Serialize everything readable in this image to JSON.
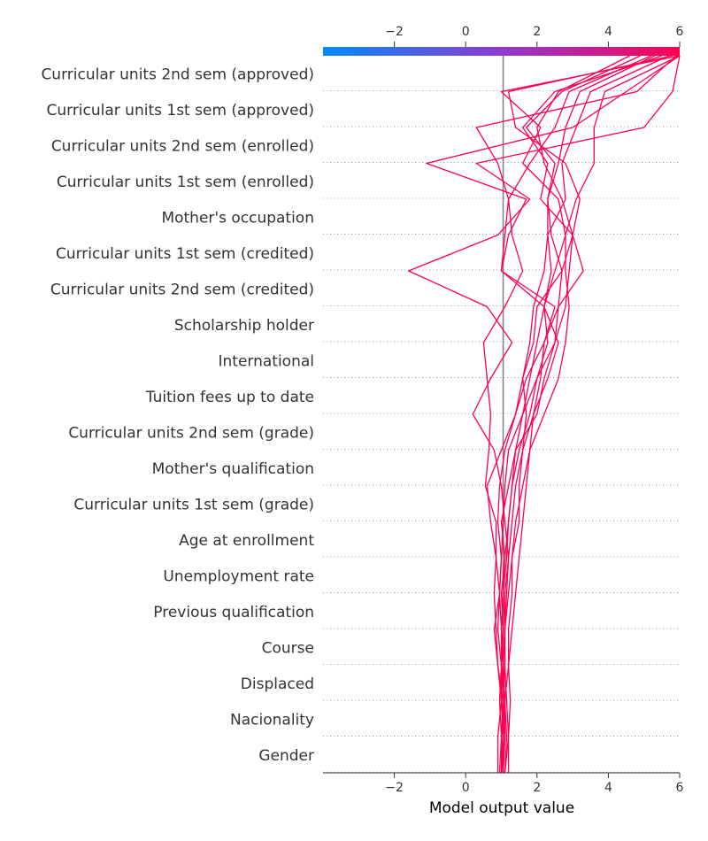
{
  "chart_data": {
    "type": "line",
    "subtype": "shap-decision-plot",
    "xlabel": "Model output value",
    "xlim": [
      -4,
      6
    ],
    "xticks": [
      -2,
      0,
      2,
      4,
      6
    ],
    "xtick_labels": [
      "−2",
      "0",
      "2",
      "4",
      "6"
    ],
    "base_value": 1.05,
    "colorbar": {
      "colors": [
        "#008bfb",
        "#8f3bd0",
        "#ff0051"
      ],
      "range": [
        -4,
        6
      ]
    },
    "line_color": "#ff0051",
    "reference_line_color": "#808080",
    "features": [
      "Curricular units 2nd sem (approved)",
      "Curricular units 1st sem (approved)",
      "Curricular units 2nd sem (enrolled)",
      "Curricular units 1st sem (enrolled)",
      "Mother's occupation",
      "Curricular units 1st sem (credited)",
      "Curricular units 2nd sem (credited)",
      "Scholarship holder",
      "International",
      "Tuition fees up to date",
      "Curricular units 2nd sem (grade)",
      "Mother's qualification",
      "Curricular units 1st sem (grade)",
      "Age at enrollment",
      "Unemployment rate",
      "Previous qualification",
      "Course",
      "Displaced",
      "Nacionality",
      "Gender"
    ],
    "series_note": "cumulative model output after each feature, listed from the bottom feature (Gender) up to the top feature (Curricular units 2nd sem (approved)); 21 values = start + 20 features",
    "series": [
      {
        "values": [
          1.05,
          1.1,
          1.05,
          0.9,
          0.85,
          0.8,
          0.85,
          0.7,
          0.6,
          1.0,
          1.4,
          1.7,
          2.2,
          2.6,
          2.7,
          2.4,
          2.3,
          2.6,
          2.8,
          3.2,
          5.3
        ]
      },
      {
        "values": [
          1.0,
          1.1,
          1.0,
          1.0,
          1.0,
          0.95,
          0.85,
          0.85,
          0.55,
          0.65,
          0.7,
          0.6,
          0.5,
          1.1,
          1.6,
          1.3,
          1.2,
          0.9,
          0.3,
          4.8,
          5.9
        ]
      },
      {
        "values": [
          0.95,
          1.0,
          1.1,
          1.2,
          1.3,
          1.4,
          1.5,
          1.6,
          1.7,
          1.8,
          1.9,
          2.3,
          2.6,
          2.2,
          2.5,
          2.8,
          3.1,
          3.6,
          3.6,
          3.9,
          6.0
        ]
      },
      {
        "values": [
          1.1,
          1.2,
          1.15,
          1.1,
          1.1,
          1.15,
          1.2,
          1.1,
          1.0,
          0.8,
          0.2,
          0.7,
          1.3,
          0.6,
          -1.6,
          0.9,
          1.8,
          0.3,
          5.0,
          5.8,
          6.0
        ]
      },
      {
        "values": [
          1.2,
          1.2,
          1.25,
          1.2,
          1.2,
          1.3,
          1.3,
          1.5,
          1.5,
          1.6,
          1.9,
          2.1,
          2.2,
          2.5,
          1.0,
          1.2,
          1.7,
          -1.1,
          3.0,
          4.5,
          6.0
        ]
      },
      {
        "values": [
          1.0,
          1.05,
          1.1,
          1.05,
          1.0,
          1.05,
          1.1,
          1.2,
          1.3,
          1.4,
          1.6,
          1.8,
          2.0,
          2.2,
          2.4,
          2.3,
          2.3,
          2.5,
          1.7,
          2.7,
          4.9
        ]
      },
      {
        "values": [
          0.9,
          0.9,
          1.0,
          0.9,
          0.8,
          0.95,
          1.0,
          0.9,
          0.95,
          1.1,
          1.4,
          1.6,
          1.9,
          2.0,
          2.7,
          3.0,
          3.2,
          2.8,
          1.4,
          1.2,
          5.8
        ]
      },
      {
        "values": [
          1.1,
          1.15,
          1.1,
          1.0,
          0.9,
          0.95,
          1.0,
          1.05,
          1.1,
          1.2,
          1.6,
          2.0,
          2.5,
          2.8,
          2.9,
          3.0,
          2.1,
          2.3,
          1.6,
          2.5,
          5.5
        ]
      },
      {
        "values": [
          1.0,
          1.0,
          0.95,
          1.0,
          1.05,
          1.0,
          1.1,
          1.0,
          1.2,
          1.4,
          2.0,
          2.2,
          2.5,
          2.6,
          3.3,
          3.0,
          2.7,
          2.2,
          2.0,
          2.6,
          4.6
        ]
      },
      {
        "values": [
          1.05,
          1.1,
          1.1,
          1.05,
          1.1,
          1.2,
          1.3,
          1.4,
          1.6,
          1.8,
          2.2,
          2.6,
          2.8,
          2.9,
          2.8,
          2.8,
          2.6,
          1.6,
          2.1,
          1.0,
          6.0
        ]
      },
      {
        "values": [
          1.0,
          1.05,
          1.0,
          1.05,
          1.1,
          1.05,
          1.15,
          1.2,
          1.3,
          1.5,
          1.8,
          2.0,
          2.3,
          2.2,
          1.0,
          1.1,
          1.2,
          1.8,
          2.5,
          2.9,
          5.2
        ]
      },
      {
        "values": [
          1.05,
          1.0,
          1.05,
          1.1,
          1.1,
          1.1,
          1.2,
          1.3,
          1.4,
          1.6,
          1.7,
          1.6,
          1.8,
          1.9,
          2.2,
          2.3,
          2.8,
          2.7,
          3.1,
          3.5,
          5.7
        ]
      }
    ]
  }
}
